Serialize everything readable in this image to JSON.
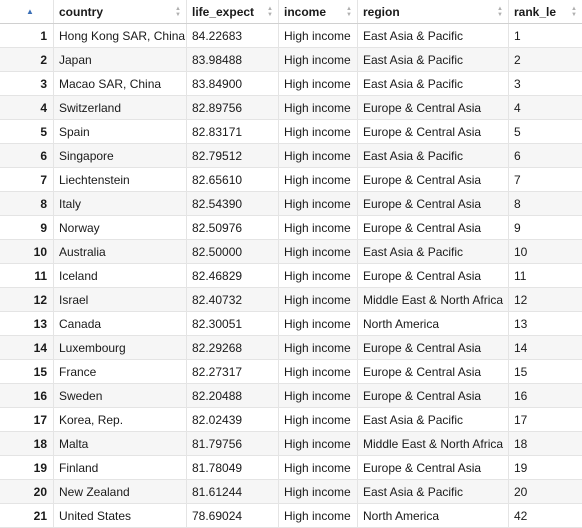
{
  "table": {
    "sort_arrow_icon": "sort-ascending-icon",
    "sort_icon": "sort-both-icon",
    "columns": [
      "country",
      "life_expect",
      "income",
      "region",
      "rank_le"
    ],
    "rows": [
      [
        "1",
        "Hong Kong SAR, China",
        "84.22683",
        "High income",
        "East Asia & Pacific",
        "1"
      ],
      [
        "2",
        "Japan",
        "83.98488",
        "High income",
        "East Asia & Pacific",
        "2"
      ],
      [
        "3",
        "Macao SAR, China",
        "83.84900",
        "High income",
        "East Asia & Pacific",
        "3"
      ],
      [
        "4",
        "Switzerland",
        "82.89756",
        "High income",
        "Europe & Central Asia",
        "4"
      ],
      [
        "5",
        "Spain",
        "82.83171",
        "High income",
        "Europe & Central Asia",
        "5"
      ],
      [
        "6",
        "Singapore",
        "82.79512",
        "High income",
        "East Asia & Pacific",
        "6"
      ],
      [
        "7",
        "Liechtenstein",
        "82.65610",
        "High income",
        "Europe & Central Asia",
        "7"
      ],
      [
        "8",
        "Italy",
        "82.54390",
        "High income",
        "Europe & Central Asia",
        "8"
      ],
      [
        "9",
        "Norway",
        "82.50976",
        "High income",
        "Europe & Central Asia",
        "9"
      ],
      [
        "10",
        "Australia",
        "82.50000",
        "High income",
        "East Asia & Pacific",
        "10"
      ],
      [
        "11",
        "Iceland",
        "82.46829",
        "High income",
        "Europe & Central Asia",
        "11"
      ],
      [
        "12",
        "Israel",
        "82.40732",
        "High income",
        "Middle East & North Africa",
        "12"
      ],
      [
        "13",
        "Canada",
        "82.30051",
        "High income",
        "North America",
        "13"
      ],
      [
        "14",
        "Luxembourg",
        "82.29268",
        "High income",
        "Europe & Central Asia",
        "14"
      ],
      [
        "15",
        "France",
        "82.27317",
        "High income",
        "Europe & Central Asia",
        "15"
      ],
      [
        "16",
        "Sweden",
        "82.20488",
        "High income",
        "Europe & Central Asia",
        "16"
      ],
      [
        "17",
        "Korea, Rep.",
        "82.02439",
        "High income",
        "East Asia & Pacific",
        "17"
      ],
      [
        "18",
        "Malta",
        "81.79756",
        "High income",
        "Middle East & North Africa",
        "18"
      ],
      [
        "19",
        "Finland",
        "81.78049",
        "High income",
        "Europe & Central Asia",
        "19"
      ],
      [
        "20",
        "New Zealand",
        "81.61244",
        "High income",
        "East Asia & Pacific",
        "20"
      ],
      [
        "21",
        "United States",
        "78.69024",
        "High income",
        "North America",
        "42"
      ]
    ]
  }
}
